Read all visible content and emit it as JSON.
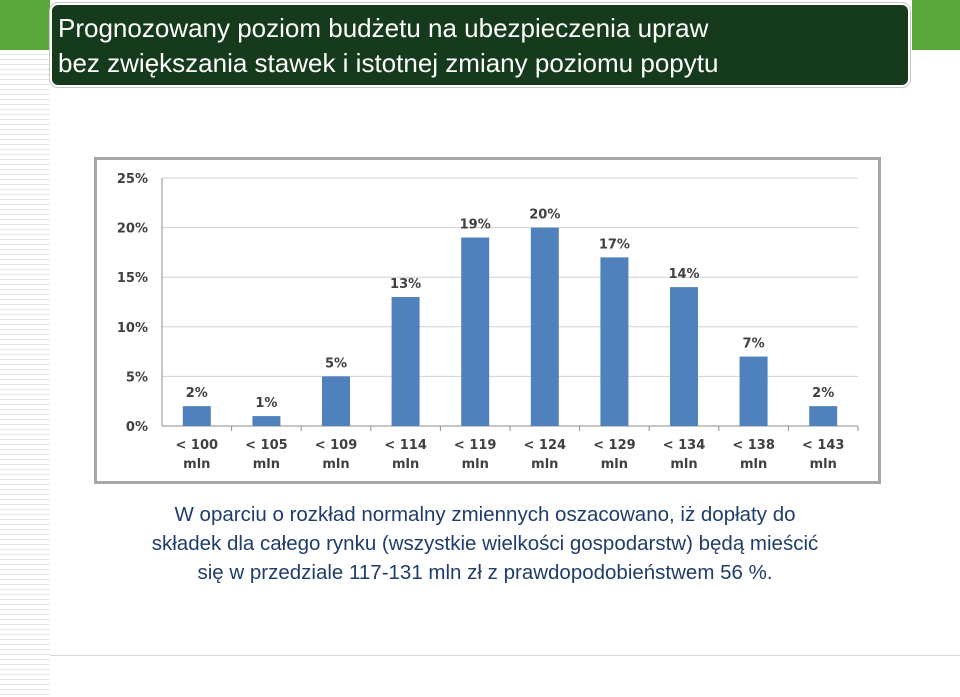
{
  "title": {
    "line1": "Prognozowany poziom budżetu na ubezpieczenia upraw",
    "line2": "bez zwiększania stawek i istotnej zmiany poziomu popytu"
  },
  "chart_data": {
    "type": "bar",
    "categories": [
      [
        "< 100",
        "mln"
      ],
      [
        "< 105",
        "mln"
      ],
      [
        "< 109",
        "mln"
      ],
      [
        "< 114",
        "mln"
      ],
      [
        "< 119",
        "mln"
      ],
      [
        "< 124",
        "mln"
      ],
      [
        "< 129",
        "mln"
      ],
      [
        "< 134",
        "mln"
      ],
      [
        "< 138",
        "mln"
      ],
      [
        "< 143",
        "mln"
      ]
    ],
    "values": [
      2,
      1,
      5,
      13,
      19,
      20,
      17,
      14,
      7,
      2
    ],
    "data_labels": [
      "2%",
      "1%",
      "5%",
      "13%",
      "19%",
      "20%",
      "17%",
      "14%",
      "7%",
      "2%"
    ],
    "yticks": [
      "0%",
      "5%",
      "10%",
      "15%",
      "20%",
      "25%"
    ],
    "ylim": [
      0,
      25
    ],
    "grid": true,
    "legend": "none",
    "bar_color": "#4f81bd"
  },
  "caption": {
    "line1": "W oparciu o rozkład normalny zmiennych oszacowano, iż dopłaty do",
    "line2": "składek dla całego rynku (wszystkie wielkości gospodarstw) będą mieścić",
    "line3": "się w przedziale 117-131 mln zł z prawdopodobieństwem 56 %."
  }
}
